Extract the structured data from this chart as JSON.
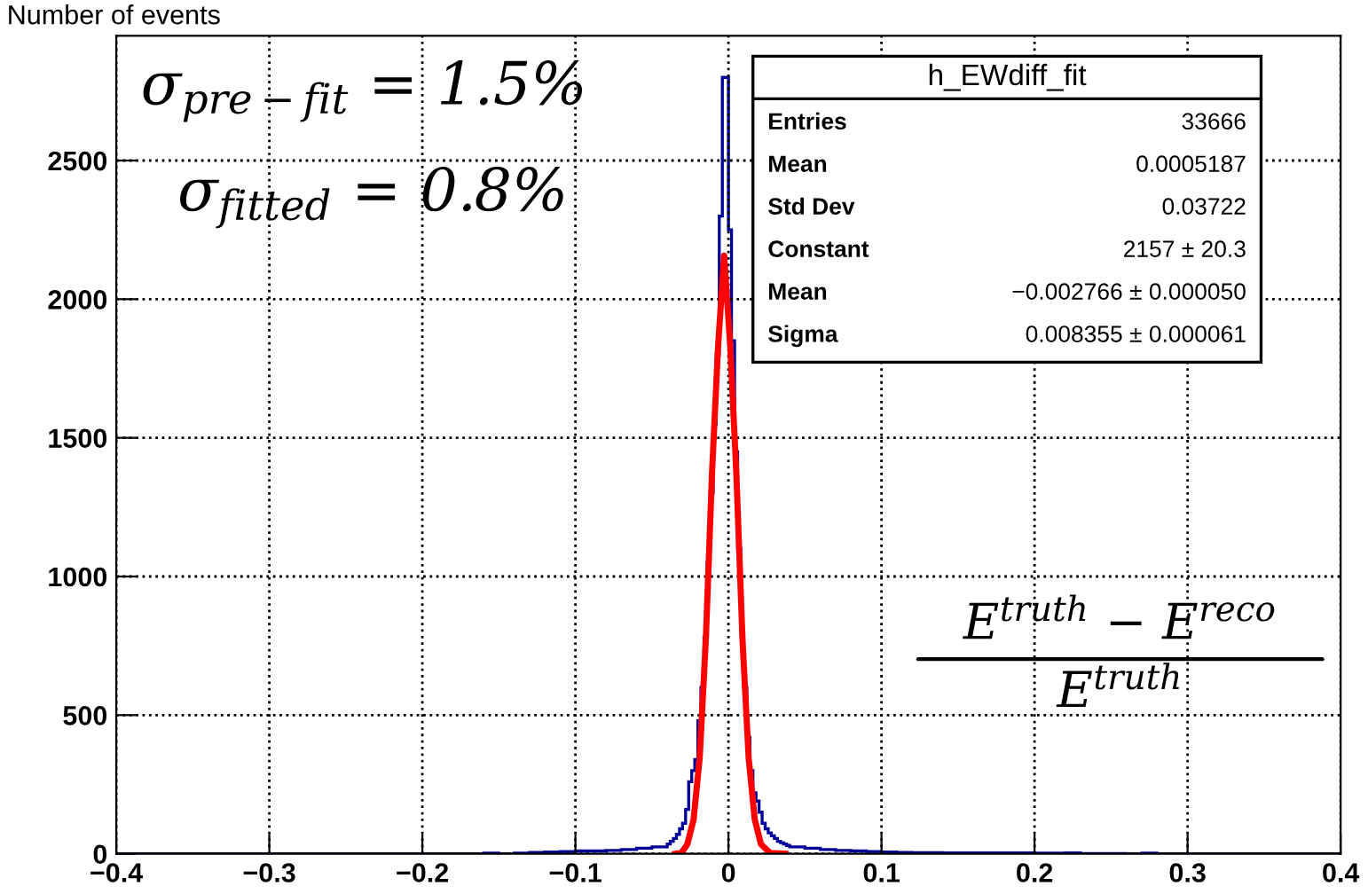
{
  "chart_data": {
    "type": "histogram",
    "ylabel": "Number of events",
    "xlim": [
      -0.4,
      0.4
    ],
    "ylim": [
      0,
      2950
    ],
    "xticks": [
      {
        "value": -0.4,
        "label": "−0.4"
      },
      {
        "value": -0.3,
        "label": "−0.3"
      },
      {
        "value": -0.2,
        "label": "−0.2"
      },
      {
        "value": -0.1,
        "label": "−0.1"
      },
      0,
      0.1,
      0.2,
      0.3,
      0.4
    ],
    "yticks": [
      0,
      500,
      1000,
      1500,
      2000,
      2500
    ],
    "grid": true,
    "series": [
      {
        "color": "#000099",
        "bins": [
          -0.4,
          -0.16,
          -0.15,
          -0.14,
          -0.13,
          -0.12,
          -0.11,
          -0.1,
          -0.09,
          -0.08,
          -0.07,
          -0.06,
          -0.05,
          -0.04,
          -0.038,
          -0.036,
          -0.034,
          -0.032,
          -0.03,
          -0.028,
          -0.026,
          -0.024,
          -0.022,
          -0.02,
          -0.018,
          -0.016,
          -0.014,
          -0.012,
          -0.01,
          -0.008,
          -0.006,
          -0.004,
          -0.002,
          0.0,
          0.002,
          0.004,
          0.006,
          0.008,
          0.01,
          0.012,
          0.014,
          0.016,
          0.018,
          0.02,
          0.022,
          0.024,
          0.026,
          0.028,
          0.03,
          0.032,
          0.034,
          0.036,
          0.038,
          0.04,
          0.05,
          0.06,
          0.07,
          0.08,
          0.09,
          0.1,
          0.11,
          0.12,
          0.13,
          0.14,
          0.15,
          0.16,
          0.17,
          0.18,
          0.19,
          0.2,
          0.21,
          0.22,
          0.23,
          0.24,
          0.25,
          0.26,
          0.27,
          0.28,
          0.4
        ],
        "values": [
          0,
          2,
          0,
          2,
          5,
          6,
          8,
          10,
          10,
          12,
          15,
          20,
          25,
          35,
          45,
          55,
          70,
          90,
          110,
          160,
          260,
          300,
          340,
          480,
          600,
          780,
          1050,
          1300,
          1550,
          1800,
          2300,
          2800,
          2800,
          2250,
          1850,
          1450,
          1100,
          800,
          600,
          420,
          300,
          220,
          190,
          150,
          110,
          90,
          75,
          65,
          55,
          45,
          40,
          35,
          30,
          25,
          20,
          15,
          12,
          10,
          8,
          6,
          5,
          4,
          4,
          3,
          3,
          3,
          3,
          3,
          3,
          2,
          2,
          3,
          1,
          1,
          1,
          0,
          2,
          0
        ]
      },
      {
        "type": "line",
        "color": "#ff0000",
        "x": [
          -0.0348,
          -0.0308,
          -0.0268,
          -0.0228,
          -0.0188,
          -0.0148,
          -0.0108,
          -0.0068,
          -0.0028,
          0.0012,
          0.0052,
          0.0092,
          0.0132,
          0.0172,
          0.0212,
          0.0272,
          0.0372
        ],
        "values": [
          0,
          3,
          35,
          123,
          345,
          770,
          1365,
          1829,
          2157,
          1829,
          1365,
          770,
          345,
          123,
          35,
          3,
          0
        ]
      }
    ],
    "annotations": [
      "σ$_{pre−fit}$ = 1.5%",
      "σ$_{fitted}$ = 0.8%",
      "E$^{truth}$ − E$^{reco}$",
      "E$^{truth}$",
      "h_EWdiff_fit",
      "Entries",
      "33666",
      "Mean",
      "0.0005187",
      "Std Dev",
      "0.03722",
      "Constant",
      "2157 ± 20.3",
      "Mean",
      "−0.002766 ± 0.000050",
      "Sigma",
      "0.008355 ± 0.000061"
    ]
  }
}
